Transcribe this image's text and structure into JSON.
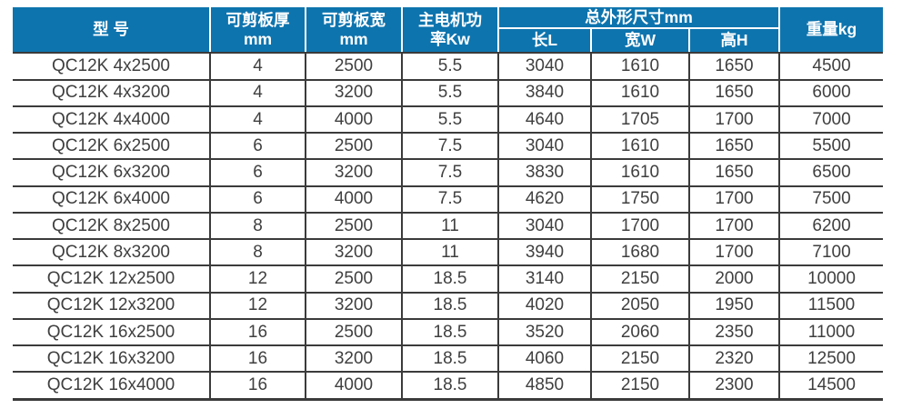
{
  "colors": {
    "header_bg": "#0e74ae",
    "header_text": "#ffffff",
    "body_text": "#3f3f3f",
    "grid_line": "#3b3b3b"
  },
  "table": {
    "headers": {
      "model": "型 号",
      "thickness": "可剪板厚\nmm",
      "cut_width": "可剪板宽\nmm",
      "motor_power": "主电机功\n率Kw",
      "overall_dims": "总外形尺寸mm",
      "length": "长L",
      "width_dim": "宽W",
      "height_dim": "高H",
      "weight": "重量kg"
    },
    "column_keys": [
      "model",
      "thickness",
      "cut-width",
      "motor-power",
      "length",
      "width",
      "height",
      "weight"
    ],
    "rows": [
      [
        "QC12K 4x2500",
        "4",
        "2500",
        "5.5",
        "3040",
        "1610",
        "1650",
        "4500"
      ],
      [
        "QC12K 4x3200",
        "4",
        "3200",
        "5.5",
        "3840",
        "1610",
        "1650",
        "6000"
      ],
      [
        "QC12K 4x4000",
        "4",
        "4000",
        "5.5",
        "4640",
        "1705",
        "1700",
        "7000"
      ],
      [
        "QC12K 6x2500",
        "6",
        "2500",
        "7.5",
        "3040",
        "1610",
        "1650",
        "5500"
      ],
      [
        "QC12K 6x3200",
        "6",
        "3200",
        "7.5",
        "3830",
        "1610",
        "1650",
        "6500"
      ],
      [
        "QC12K 6x4000",
        "6",
        "4000",
        "7.5",
        "4620",
        "1750",
        "1700",
        "7500"
      ],
      [
        "QC12K 8x2500",
        "8",
        "2500",
        "11",
        "3040",
        "1700",
        "1700",
        "6200"
      ],
      [
        "QC12K 8x3200",
        "8",
        "3200",
        "11",
        "3940",
        "1680",
        "1700",
        "7100"
      ],
      [
        "QC12K 12x2500",
        "12",
        "2500",
        "18.5",
        "3140",
        "2150",
        "2000",
        "10000"
      ],
      [
        "QC12K 12x3200",
        "12",
        "3200",
        "18.5",
        "4020",
        "2050",
        "1950",
        "11500"
      ],
      [
        "QC12K 16x2500",
        "16",
        "2500",
        "18.5",
        "3520",
        "2060",
        "2350",
        "11000"
      ],
      [
        "QC12K 16x3200",
        "16",
        "3200",
        "18.5",
        "4060",
        "2150",
        "2320",
        "12500"
      ],
      [
        "QC12K 16x4000",
        "16",
        "4000",
        "18.5",
        "4850",
        "2150",
        "2300",
        "14500"
      ]
    ]
  }
}
